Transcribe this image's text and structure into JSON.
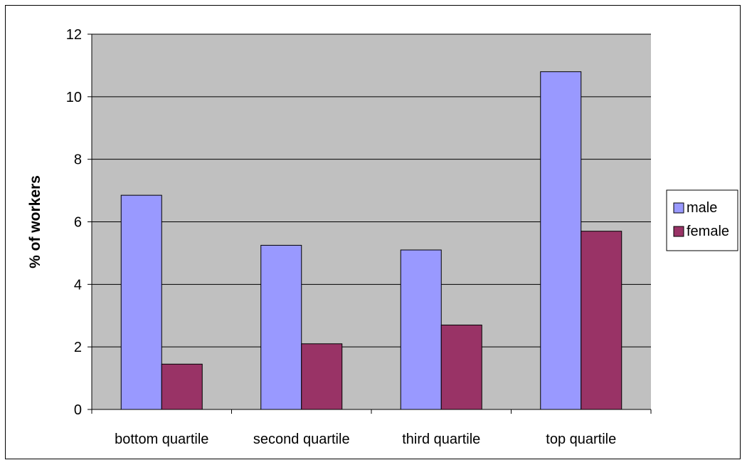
{
  "chart_data": {
    "type": "bar",
    "categories": [
      "bottom quartile",
      "second quartile",
      "third quartile",
      "top quartile"
    ],
    "series": [
      {
        "name": "male",
        "values": [
          6.85,
          5.25,
          5.1,
          10.8
        ],
        "color": "#9999ff"
      },
      {
        "name": "female",
        "values": [
          1.45,
          2.1,
          2.7,
          5.7
        ],
        "color": "#993366"
      }
    ],
    "ylabel": "% of workers",
    "xlabel": "",
    "ylim": [
      0,
      12
    ],
    "yticks": [
      0,
      2,
      4,
      6,
      8,
      10,
      12
    ],
    "grid": true,
    "legend_position": "right",
    "plot_background": "#c0c0c0"
  }
}
